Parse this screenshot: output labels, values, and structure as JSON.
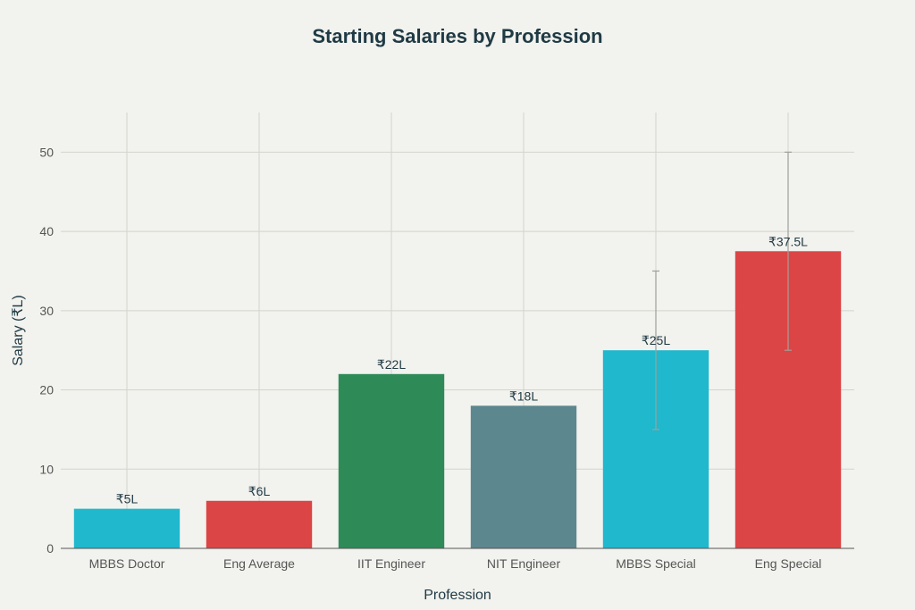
{
  "chart_data": {
    "type": "bar",
    "title": "Starting Salaries by Profession",
    "xlabel": "Profession",
    "ylabel": "Salary (₹L)",
    "categories": [
      "MBBS Doctor",
      "Eng Average",
      "IIT Engineer",
      "NIT Engineer",
      "MBBS Special",
      "Eng Special"
    ],
    "values": [
      5,
      6,
      22,
      18,
      25,
      37.5
    ],
    "data_labels": [
      "₹5L",
      "₹6L",
      "₹22L",
      "₹18L",
      "₹25L",
      "₹37.5L"
    ],
    "error_bars": [
      [
        5,
        5
      ],
      [
        6,
        6
      ],
      [
        22,
        22
      ],
      [
        18,
        18
      ],
      [
        15,
        35
      ],
      [
        25,
        50
      ]
    ],
    "colors": [
      "#1fb8cd",
      "#db4545",
      "#2e8b57",
      "#5d878f",
      "#1fb8cd",
      "#db4545"
    ],
    "ylim": [
      0,
      55
    ],
    "yticks": [
      0,
      10,
      20,
      30,
      40,
      50
    ],
    "grid": true,
    "legend": "none"
  }
}
